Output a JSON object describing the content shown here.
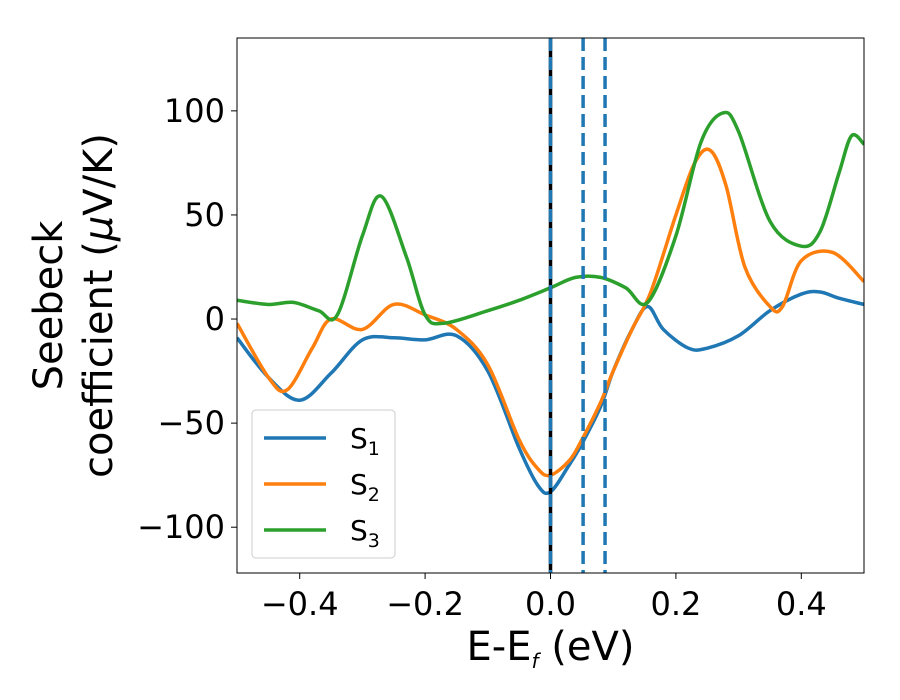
{
  "chart_data": {
    "type": "line",
    "xlabel": {
      "main": "E-E",
      "sub": "f",
      "tail": " (eV)"
    },
    "ylabel": {
      "line1": "Seebeck",
      "line2_prefix": "coefficient  (",
      "line2_mu": "μ",
      "line2_suffix": "V/K)"
    },
    "xlim": [
      -0.5,
      0.5
    ],
    "ylim": [
      -122,
      135
    ],
    "xticks": [
      -0.4,
      -0.2,
      0.0,
      0.2,
      0.4
    ],
    "xtick_labels": [
      "−0.4",
      "−0.2",
      "0.0",
      "0.2",
      "0.4"
    ],
    "yticks": [
      -100,
      -50,
      0,
      50,
      100
    ],
    "ytick_labels": [
      "−100",
      "−50",
      "0",
      "50",
      "100"
    ],
    "grid": false,
    "legend_position": "lower-left",
    "vlines": [
      {
        "x": 0.0,
        "color": "#000000",
        "style": "solid"
      },
      {
        "x": 0.0,
        "color": "#1f77b4",
        "style": "dashed"
      },
      {
        "x": 0.052,
        "color": "#1f77b4",
        "style": "dashed"
      },
      {
        "x": 0.087,
        "color": "#1f77b4",
        "style": "dashed"
      }
    ],
    "series": [
      {
        "name": "S",
        "sub": "1",
        "color": "#1f77b4",
        "x": [
          -0.5,
          -0.45,
          -0.4,
          -0.35,
          -0.3,
          -0.25,
          -0.2,
          -0.15,
          -0.1,
          -0.05,
          -0.02,
          0.0,
          0.03,
          0.05,
          0.08,
          0.1,
          0.13,
          0.155,
          0.18,
          0.22,
          0.25,
          0.3,
          0.35,
          0.4,
          0.43,
          0.46,
          0.5
        ],
        "y": [
          -9,
          -28,
          -39,
          -26,
          -10,
          -9,
          -10,
          -8,
          -25,
          -62,
          -80,
          -83,
          -70,
          -60,
          -42,
          -25,
          -5,
          6,
          -5,
          -14,
          -14,
          -8,
          4,
          12,
          13,
          10,
          7
        ]
      },
      {
        "name": "S",
        "sub": "2",
        "color": "#ff7f0e",
        "x": [
          -0.5,
          -0.45,
          -0.42,
          -0.38,
          -0.35,
          -0.3,
          -0.25,
          -0.2,
          -0.15,
          -0.1,
          -0.05,
          -0.02,
          0.0,
          0.03,
          0.05,
          0.08,
          0.1,
          0.13,
          0.16,
          0.2,
          0.23,
          0.255,
          0.28,
          0.31,
          0.35,
          0.37,
          0.4,
          0.45,
          0.5
        ],
        "y": [
          -2,
          -28,
          -34,
          -14,
          0,
          -5,
          7,
          2,
          -5,
          -22,
          -58,
          -72,
          -75,
          -68,
          -58,
          -40,
          -25,
          -5,
          13,
          50,
          75,
          81,
          64,
          25,
          6,
          6,
          28,
          32,
          18
        ]
      },
      {
        "name": "S",
        "sub": "3",
        "color": "#2ca02c",
        "x": [
          -0.5,
          -0.45,
          -0.41,
          -0.37,
          -0.34,
          -0.3,
          -0.27,
          -0.23,
          -0.2,
          -0.17,
          -0.1,
          -0.05,
          0.0,
          0.04,
          0.08,
          0.12,
          0.155,
          0.2,
          0.24,
          0.275,
          0.3,
          0.35,
          0.4,
          0.43,
          0.46,
          0.48,
          0.5
        ],
        "y": [
          9,
          7,
          8,
          4,
          2,
          40,
          59,
          30,
          2,
          -2,
          4,
          9,
          15,
          20,
          20,
          15,
          8,
          40,
          85,
          99,
          90,
          47,
          35,
          42,
          70,
          88,
          84
        ]
      }
    ]
  }
}
